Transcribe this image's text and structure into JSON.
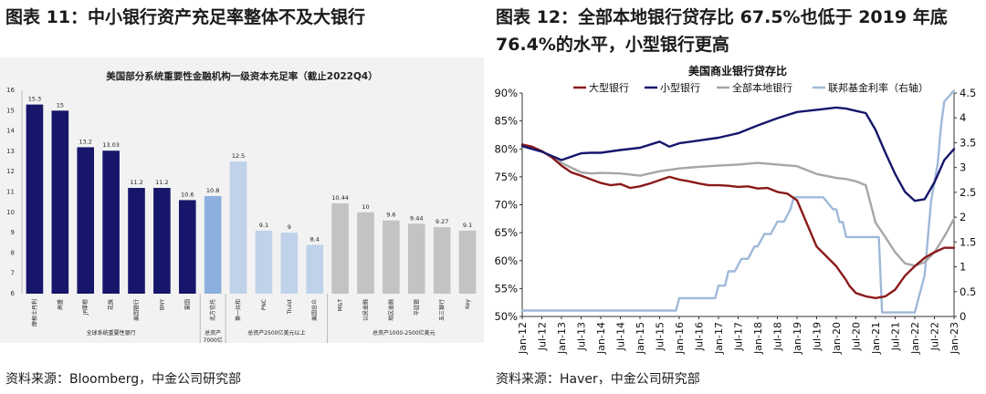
{
  "left_figure": {
    "caption": "图表 11：中小银行资产充足率整体不及大银行",
    "source": "资料来源：Bloomberg，中金公司研究部"
  },
  "right_figure": {
    "caption": "图表 12：全部本地银行贷存比 67.5%也低于 2019 年底 76.4%的水平，小型银行更高",
    "source": "资料来源：Haver，中金公司研究部"
  },
  "chart_data": [
    {
      "type": "bar",
      "title": "美国部分系统重要性金融机构一级资本充足率（截止2022Q4）",
      "categories": [
        "摩根士丹利",
        "高盛",
        "JP摩根",
        "花旗",
        "美国银行",
        "BNY",
        "富国",
        "北方信托",
        "第一共和",
        "PNC",
        "Truist",
        "美国合众",
        "M&T",
        "公民金融",
        "地区金融",
        "平廷银",
        "五三银行",
        "Key"
      ],
      "values": [
        15.3,
        15,
        13.2,
        13.03,
        11.2,
        11.2,
        10.6,
        10.8,
        12.5,
        9.1,
        9,
        8.4,
        10.44,
        10,
        9.6,
        9.44,
        9.27,
        9.1
      ],
      "value_labels": [
        "15.3",
        "15",
        "13.2",
        "13.03",
        "11.2",
        "11.2",
        "10.6",
        "10.8",
        "12.5",
        "9.1",
        "9",
        "8.4",
        "10.44",
        "10",
        "9.6",
        "9.44",
        "9.27",
        "9.1"
      ],
      "colors": [
        "#16166b",
        "#16166b",
        "#16166b",
        "#16166b",
        "#16166b",
        "#16166b",
        "#16166b",
        "#8cb0de",
        "#bfd2ea",
        "#bfd2ea",
        "#bfd2ea",
        "#bfd2ea",
        "#c3c3c3",
        "#c3c3c3",
        "#c3c3c3",
        "#c3c3c3",
        "#c3c3c3",
        "#c3c3c3"
      ],
      "groups": [
        {
          "label": "全球系统重要性银行",
          "start": 0,
          "end": 6
        },
        {
          "label": "总资产7000亿美元以上",
          "start": 7,
          "end": 7
        },
        {
          "label": "总资产2500亿美元以上",
          "start": 8,
          "end": 11
        },
        {
          "label": "总资产1000-2500亿美元",
          "start": 12,
          "end": 17
        }
      ],
      "ylim": [
        6,
        16
      ],
      "yticks": [
        6,
        7,
        8,
        9,
        10,
        11,
        12,
        13,
        14,
        15,
        16
      ]
    },
    {
      "type": "line",
      "title": "美国商业银行贷存比",
      "x_ticks": [
        "Jan-12",
        "Jul-12",
        "Jan-13",
        "Jul-13",
        "Jan-14",
        "Jul-14",
        "Jan-15",
        "Jul-15",
        "Jan-16",
        "Jul-16",
        "Jan-17",
        "Jul-17",
        "Jan-18",
        "Jul-18",
        "Jan-19",
        "Jul-19",
        "Jan-20",
        "Jul-20",
        "Jan-21",
        "Jul-21",
        "Jan-22",
        "Jul-22",
        "Jan-23"
      ],
      "y_left": {
        "ylim": [
          50,
          90
        ],
        "ticks": [
          "50%",
          "55%",
          "60%",
          "65%",
          "70%",
          "75%",
          "80%",
          "85%",
          "90%"
        ]
      },
      "y_right": {
        "ylim": [
          0,
          4.5
        ],
        "ticks": [
          "0",
          "0.5",
          "1",
          "1.5",
          "2",
          "2.5",
          "3",
          "3.5",
          "4",
          "4.5"
        ],
        "label": "右轴"
      },
      "legend_position": "top",
      "series": [
        {
          "name": "大型银行",
          "color": "#8b1a1a",
          "axis": "left",
          "t": [
            0,
            3,
            6,
            9,
            12,
            15,
            18,
            24,
            27,
            30,
            33,
            36,
            39,
            42,
            45,
            48,
            51,
            54,
            57,
            60,
            63,
            66,
            69,
            72,
            75,
            78,
            81,
            84,
            90,
            96,
            99,
            100,
            102,
            105,
            108,
            111,
            114,
            117,
            120,
            123,
            126,
            129,
            132
          ],
          "values": [
            80.8,
            80.4,
            79.6,
            78.5,
            77.0,
            75.8,
            75.2,
            73.9,
            73.5,
            73.7,
            73.0,
            73.3,
            73.8,
            74.4,
            75.0,
            74.5,
            74.2,
            73.8,
            73.5,
            73.5,
            73.4,
            73.2,
            73.3,
            72.9,
            73.0,
            72.3,
            72.0,
            70.8,
            62.5,
            59.0,
            56.5,
            55.5,
            54.2,
            53.6,
            53.3,
            53.6,
            54.8,
            57.3,
            59.0,
            60.5,
            61.5,
            62.3,
            62.3
          ]
        },
        {
          "name": "小型银行",
          "color": "#16166b",
          "axis": "left",
          "t": [
            0,
            6,
            12,
            18,
            21,
            24,
            30,
            36,
            42,
            45,
            48,
            54,
            60,
            66,
            72,
            78,
            84,
            90,
            96,
            99,
            102,
            105,
            108,
            111,
            114,
            117,
            120,
            123,
            126,
            129,
            132
          ],
          "values": [
            80.5,
            79.5,
            78.0,
            79.2,
            79.3,
            79.3,
            79.8,
            80.2,
            81.3,
            80.4,
            81.0,
            81.5,
            82.0,
            82.8,
            84.2,
            85.5,
            86.6,
            87.0,
            87.4,
            87.2,
            86.8,
            86.4,
            83.4,
            79.3,
            75.5,
            72.3,
            70.7,
            71.0,
            74.0,
            78.0,
            80.0
          ]
        },
        {
          "name": "全部本地银行",
          "color": "#a6a6a6",
          "axis": "left",
          "t": [
            0,
            6,
            12,
            18,
            21,
            24,
            30,
            36,
            42,
            48,
            54,
            60,
            66,
            72,
            78,
            84,
            90,
            96,
            99,
            102,
            105,
            108,
            111,
            114,
            117,
            120,
            123,
            126,
            129,
            132
          ],
          "values": [
            80.7,
            79.6,
            77.5,
            75.8,
            75.6,
            75.7,
            75.6,
            75.2,
            76.0,
            76.5,
            76.8,
            77.0,
            77.2,
            77.5,
            77.2,
            76.9,
            75.5,
            74.8,
            74.6,
            74.2,
            73.5,
            66.8,
            64.2,
            61.5,
            59.5,
            59.1,
            59.7,
            61.5,
            64.3,
            67.5
          ]
        },
        {
          "name": "联邦基金利率（右轴）",
          "color": "#9fb9d9",
          "axis": "right",
          "t": [
            0,
            47,
            48,
            59,
            60,
            61,
            62,
            63,
            65,
            67,
            69,
            71,
            72,
            74,
            76,
            78,
            80,
            82,
            83,
            90,
            92,
            95,
            96,
            97,
            98,
            99,
            106,
            109,
            110,
            119,
            120,
            121,
            123,
            124,
            125,
            127,
            128,
            129,
            132
          ],
          "values": [
            0.12,
            0.12,
            0.37,
            0.37,
            0.62,
            0.62,
            0.62,
            0.91,
            0.91,
            1.16,
            1.16,
            1.41,
            1.41,
            1.66,
            1.66,
            1.91,
            1.91,
            2.16,
            2.4,
            2.4,
            2.4,
            2.16,
            2.16,
            1.9,
            1.9,
            1.6,
            1.6,
            1.6,
            0.08,
            0.08,
            0.08,
            0.33,
            0.83,
            1.58,
            2.33,
            3.08,
            3.83,
            4.33,
            4.55
          ]
        }
      ]
    }
  ]
}
